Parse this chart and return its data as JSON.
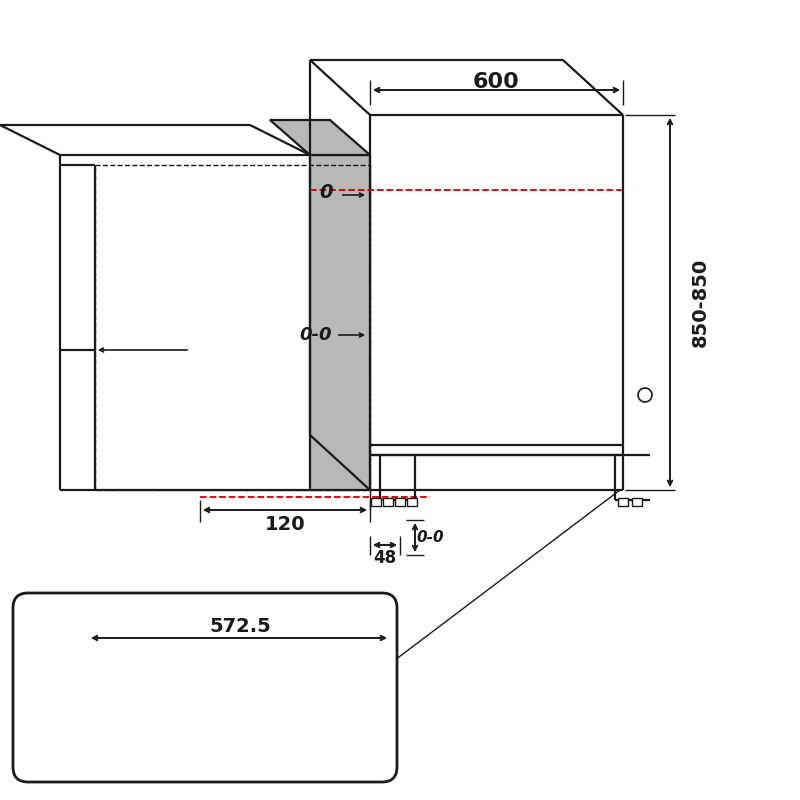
{
  "bg_color": "#ffffff",
  "line_color": "#1a1a1a",
  "red_color": "#cc0000",
  "gray_fill": "#b8b8b8",
  "dim_600": "600",
  "dim_850": "850-850",
  "dim_120": "120",
  "dim_48": "48",
  "dim_0_top": "0",
  "dim_00_mid": "0-0",
  "dim_00_bot": "0-0",
  "dim_572": "572.5",
  "font_size_large": 13,
  "font_size_med": 11,
  "font_size_small": 10,
  "font_bold": "bold"
}
